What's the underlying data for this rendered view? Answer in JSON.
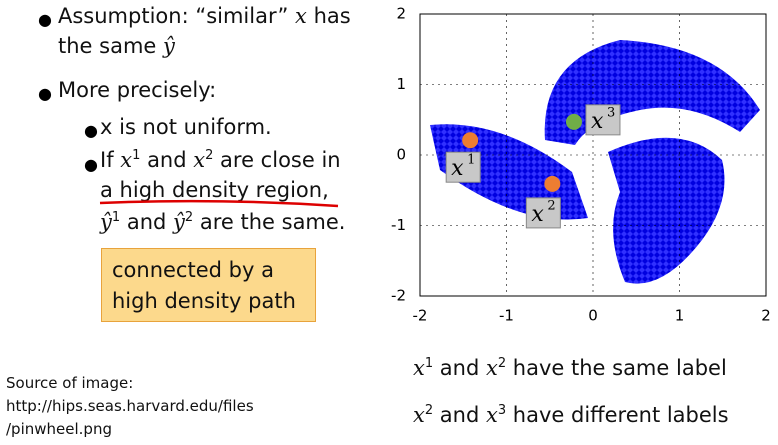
{
  "bullet_1": [
    "Assumption: “similar” ",
    "x",
    " has",
    "the same ",
    "ŷ"
  ],
  "bullet_2": "More precisely:",
  "sub_bullet_1": "x is not uniform.",
  "sub_bullet_2": [
    "If ",
    "x",
    "1",
    " and ",
    "x",
    "2",
    " are close in",
    "a high density region,",
    "ŷ",
    "1",
    " and ",
    "ŷ",
    "2",
    " are the same."
  ],
  "callout": [
    "connected by a",
    "high density path"
  ],
  "source": [
    "Source of image:",
    "http://hips.seas.harvard.edu/files",
    "/pinwheel.png"
  ],
  "statement_1": [
    "x",
    "1",
    " and ",
    "x",
    "2",
    " have the same label"
  ],
  "statement_2": [
    "x",
    "2",
    " and ",
    "x",
    "3",
    " have different labels"
  ],
  "figure": {
    "xlim": [
      -2,
      2
    ],
    "ylim": [
      -2,
      2
    ],
    "xticks": [
      -2,
      -1,
      0,
      1,
      2
    ],
    "yticks": [
      -2,
      -1,
      0,
      1,
      2
    ],
    "points": [
      {
        "name": "x",
        "sup": "1",
        "x": -1.42,
        "y": 0.21,
        "color": "#ed7d31"
      },
      {
        "name": "x",
        "sup": "2",
        "x": -0.47,
        "y": -0.41,
        "color": "#ed7d31"
      },
      {
        "name": "x",
        "sup": "3",
        "x": -0.22,
        "y": 0.47,
        "color": "#70ad47"
      }
    ]
  }
}
